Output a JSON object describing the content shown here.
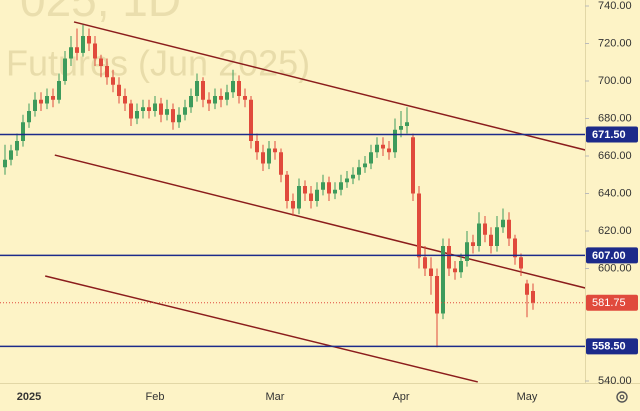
{
  "chart_data": {
    "type": "candlestick",
    "watermark_title": "025, 1D",
    "watermark": "Futures (Jun 2025)",
    "categories": [
      null,
      null,
      null,
      null,
      "2025",
      null,
      null,
      null,
      null,
      null,
      null,
      null,
      null,
      null,
      null,
      null,
      null,
      null,
      null,
      null,
      null,
      null,
      null,
      null,
      null,
      "Feb",
      null,
      null,
      null,
      null,
      null,
      null,
      null,
      null,
      null,
      null,
      null,
      null,
      null,
      null,
      null,
      null,
      null,
      null,
      null,
      "Mar",
      null,
      null,
      null,
      null,
      null,
      null,
      null,
      null,
      null,
      null,
      null,
      null,
      null,
      null,
      null,
      null,
      null,
      null,
      null,
      null,
      "Apr",
      null,
      null,
      null,
      null,
      null,
      null,
      null,
      null,
      null,
      null,
      null,
      null,
      null,
      null,
      null,
      null,
      null,
      null,
      null,
      null,
      "May",
      null
    ],
    "open": [
      654,
      658,
      663,
      668,
      678,
      684,
      690,
      688,
      692,
      690,
      700,
      712,
      718,
      715,
      724,
      720,
      712,
      708,
      702,
      698,
      692,
      688,
      680,
      684,
      686,
      684,
      688,
      682,
      685,
      678,
      682,
      686,
      692,
      700,
      690,
      688,
      692,
      690,
      694,
      700,
      692,
      690,
      668,
      662,
      656,
      664,
      662,
      650,
      636,
      632,
      644,
      640,
      636,
      642,
      646,
      640,
      642,
      646,
      648,
      650,
      654,
      656,
      662,
      666,
      664,
      662,
      674,
      676,
      670,
      640,
      606,
      600,
      596,
      576,
      612,
      600,
      598,
      604,
      614,
      612,
      624,
      618,
      612,
      622,
      626,
      616,
      606,
      592,
      588
    ],
    "high": [
      666,
      666,
      672,
      682,
      688,
      694,
      694,
      696,
      696,
      704,
      716,
      724,
      728,
      730,
      728,
      724,
      714,
      712,
      706,
      702,
      696,
      690,
      688,
      690,
      690,
      692,
      691,
      690,
      688,
      686,
      690,
      696,
      704,
      702,
      694,
      696,
      696,
      698,
      706,
      703,
      696,
      692,
      672,
      666,
      668,
      668,
      664,
      652,
      640,
      648,
      647,
      644,
      646,
      650,
      649,
      646,
      650,
      652,
      654,
      658,
      660,
      666,
      670,
      670,
      668,
      680,
      684,
      686,
      672,
      644,
      612,
      606,
      600,
      616,
      616,
      604,
      608,
      620,
      618,
      630,
      628,
      622,
      628,
      632,
      630,
      618,
      608,
      594,
      592
    ],
    "low": [
      650,
      655,
      660,
      665,
      675,
      681,
      684,
      685,
      686,
      688,
      698,
      708,
      711,
      713,
      716,
      708,
      702,
      698,
      694,
      688,
      684,
      676,
      677,
      680,
      680,
      681,
      678,
      679,
      674,
      675,
      679,
      683,
      689,
      686,
      684,
      685,
      686,
      687,
      691,
      688,
      686,
      664,
      658,
      652,
      653,
      658,
      646,
      632,
      628,
      629,
      636,
      632,
      633,
      639,
      636,
      637,
      639,
      643,
      645,
      647,
      651,
      653,
      659,
      660,
      658,
      659,
      670,
      672,
      636,
      600,
      596,
      586,
      558,
      573,
      596,
      594,
      595,
      601,
      608,
      609,
      614,
      608,
      609,
      619,
      612,
      602,
      596,
      574,
      578
    ],
    "close": [
      658,
      663,
      668,
      678,
      684,
      690,
      688,
      692,
      690,
      700,
      712,
      718,
      715,
      724,
      720,
      712,
      708,
      702,
      698,
      692,
      688,
      680,
      684,
      686,
      684,
      688,
      682,
      685,
      678,
      682,
      686,
      692,
      700,
      690,
      688,
      692,
      690,
      694,
      700,
      692,
      690,
      668,
      662,
      656,
      664,
      662,
      650,
      636,
      632,
      644,
      640,
      636,
      642,
      646,
      640,
      642,
      646,
      648,
      650,
      654,
      656,
      662,
      666,
      664,
      662,
      674,
      676,
      678,
      640,
      606,
      600,
      596,
      576,
      612,
      600,
      598,
      604,
      614,
      612,
      624,
      618,
      612,
      622,
      626,
      616,
      606,
      600,
      586,
      581.75
    ],
    "up_color": "#3d9b5c",
    "down_color": "#e04a3c",
    "ylim": [
      540,
      740
    ],
    "yticks": [
      {
        "value": 540,
        "label": "540.00"
      },
      {
        "value": 600,
        "label": "600.00"
      },
      {
        "value": 620,
        "label": "620.00"
      },
      {
        "value": 640,
        "label": "640.00"
      },
      {
        "value": 660,
        "label": "660.00"
      },
      {
        "value": 680,
        "label": "680.00"
      },
      {
        "value": 700,
        "label": "700.00"
      },
      {
        "value": 720,
        "label": "720.00"
      },
      {
        "value": 740,
        "label": "740.00"
      }
    ],
    "levels": [
      {
        "value": 671.5,
        "label": "671.50"
      },
      {
        "value": 607,
        "label": "607.00"
      },
      {
        "value": 558.5,
        "label": "558.50"
      }
    ],
    "level_color": "#1c2a8a",
    "last": {
      "value": 581.75,
      "label": "581.75"
    },
    "trendlines": [
      {
        "x": [
          11.5,
          96.7
        ],
        "y": [
          731.5,
          663.2
        ]
      },
      {
        "x": [
          8.3,
          96.7
        ],
        "y": [
          660.5,
          589.6
        ]
      },
      {
        "x": [
          6.7,
          78.8
        ],
        "y": [
          596,
          539.5
        ]
      }
    ],
    "trend_color": "#8b1c1c"
  }
}
